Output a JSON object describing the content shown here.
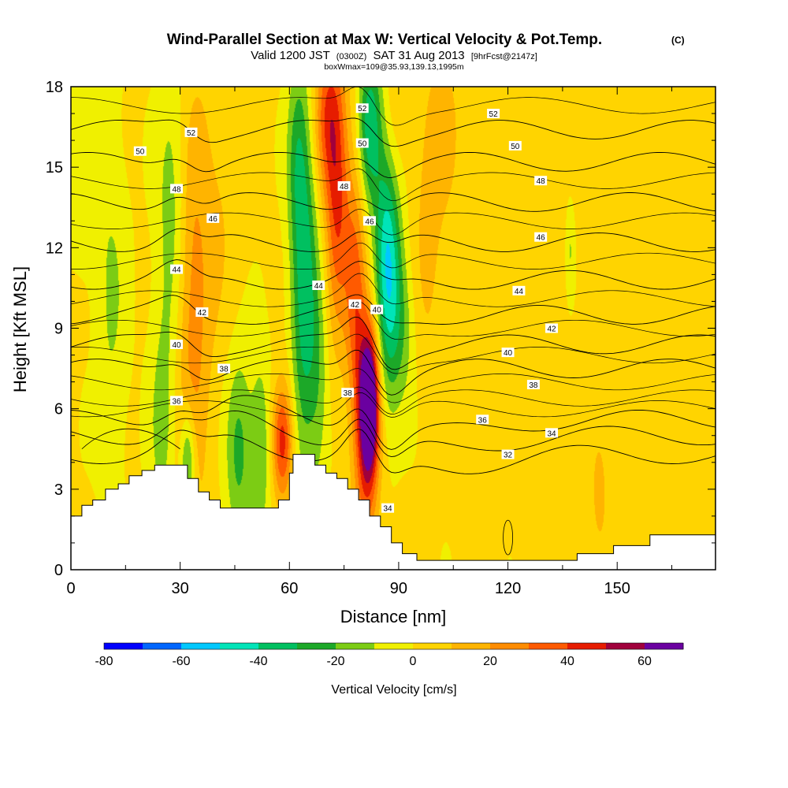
{
  "title": {
    "main": "Wind-Parallel Section at Max W: Vertical Velocity & Pot.Temp.",
    "copyright": "(C)",
    "valid_a": "Valid 1200 JST",
    "valid_b": "(0300Z)",
    "valid_c": "SAT 31 Aug 2013",
    "valid_d": "[9hrFcst@2147z]",
    "box": "boxWmax=109@35.93,139.13,1995m"
  },
  "chart_data": {
    "type": "heatmap",
    "xlabel": "Distance [nm]",
    "ylabel": "Height [Kft MSL]",
    "xlim": [
      0,
      177
    ],
    "ylim": [
      0,
      18
    ],
    "xticks": [
      "0",
      "30",
      "60",
      "90",
      "120",
      "150"
    ],
    "yticks": [
      "0",
      "3",
      "6",
      "9",
      "12",
      "15",
      "18"
    ],
    "colorbar": {
      "label": "Vertical Velocity [cm/s]",
      "tick_labels": [
        "-80",
        "-60",
        "-40",
        "-20",
        "0",
        "20",
        "40",
        "60"
      ],
      "levels": [
        -80,
        -70,
        -60,
        -50,
        -40,
        -30,
        -20,
        -10,
        0,
        10,
        20,
        30,
        40,
        50,
        60,
        70
      ],
      "colors": [
        "#0000ff",
        "#0066ff",
        "#00c8ff",
        "#00e4b8",
        "#00c060",
        "#1ca828",
        "#7ccc14",
        "#f0f000",
        "#ffd400",
        "#ffb400",
        "#ff8c00",
        "#ff5a00",
        "#e61c00",
        "#a0003c",
        "#6a00a0"
      ]
    },
    "terrain_kft": [
      [
        0,
        2.0
      ],
      [
        3,
        2.0
      ],
      [
        3,
        2.4
      ],
      [
        6,
        2.4
      ],
      [
        6,
        2.6
      ],
      [
        9.5,
        2.6
      ],
      [
        9.5,
        3.0
      ],
      [
        13,
        3.0
      ],
      [
        13,
        3.2
      ],
      [
        16,
        3.2
      ],
      [
        16,
        3.5
      ],
      [
        19.5,
        3.5
      ],
      [
        19.5,
        3.7
      ],
      [
        23,
        3.7
      ],
      [
        23,
        3.9
      ],
      [
        32,
        3.9
      ],
      [
        32,
        3.4
      ],
      [
        35,
        3.4
      ],
      [
        35,
        2.9
      ],
      [
        38,
        2.9
      ],
      [
        38,
        2.6
      ],
      [
        41,
        2.6
      ],
      [
        41,
        2.3
      ],
      [
        57,
        2.3
      ],
      [
        57,
        2.6
      ],
      [
        60,
        2.6
      ],
      [
        60,
        3.6
      ],
      [
        61,
        3.6
      ],
      [
        61,
        4.3
      ],
      [
        67,
        4.3
      ],
      [
        67,
        3.9
      ],
      [
        70,
        3.9
      ],
      [
        70,
        3.6
      ],
      [
        73,
        3.6
      ],
      [
        73,
        3.4
      ],
      [
        76,
        3.4
      ],
      [
        76,
        3.0
      ],
      [
        79,
        3.0
      ],
      [
        79,
        2.6
      ],
      [
        82,
        2.6
      ],
      [
        82,
        2.0
      ],
      [
        85,
        2.0
      ],
      [
        85,
        1.6
      ],
      [
        88,
        1.6
      ],
      [
        88,
        1.0
      ],
      [
        91,
        1.0
      ],
      [
        91,
        0.6
      ],
      [
        95,
        0.6
      ],
      [
        95,
        0.35
      ],
      [
        139,
        0.35
      ],
      [
        139,
        0.6
      ],
      [
        149,
        0.6
      ],
      [
        149,
        0.9
      ],
      [
        159,
        0.9
      ],
      [
        159,
        1.3
      ],
      [
        177,
        1.3
      ]
    ],
    "w_features": [
      {
        "x": 33,
        "z": 9.5,
        "sx": 3.5,
        "sz": 5.5,
        "w": 25
      },
      {
        "x": 28,
        "z": 13,
        "sx": 3,
        "sz": 4,
        "w": -20
      },
      {
        "x": 25,
        "z": 5.5,
        "sx": 2.5,
        "sz": 3,
        "w": -15
      },
      {
        "x": 32,
        "z": 4,
        "sx": 1.5,
        "sz": 1.5,
        "w": -35
      },
      {
        "x": 11,
        "z": 10,
        "sx": 3,
        "sz": 5,
        "w": -12
      },
      {
        "x": 46,
        "z": 4.5,
        "sx": 2.5,
        "sz": 2.5,
        "w": -25
      },
      {
        "x": 52,
        "z": 4.5,
        "sx": 2,
        "sz": 2.5,
        "w": -20
      },
      {
        "x": 41,
        "z": 14,
        "sx": 4,
        "sz": 4,
        "w": 8
      },
      {
        "x": 58,
        "z": 4.8,
        "sx": 2,
        "sz": 1.5,
        "w": 45
      },
      {
        "x": 64,
        "z": 10.5,
        "sx": 2.5,
        "sz": 4.5,
        "w": -38
      },
      {
        "x": 68,
        "z": 7,
        "sx": 2,
        "sz": 3,
        "w": -15
      },
      {
        "x": 62,
        "z": 15.5,
        "sx": 2,
        "sz": 2.5,
        "w": -18
      },
      {
        "x": 73,
        "z": 14,
        "sx": 2.3,
        "sz": 3.5,
        "w": 40
      },
      {
        "x": 70,
        "z": 17,
        "sx": 2.5,
        "sz": 2,
        "w": 30
      },
      {
        "x": 78,
        "z": 10.5,
        "sx": 2,
        "sz": 3.5,
        "w": 30
      },
      {
        "x": 82,
        "z": 6.3,
        "sx": 1.8,
        "sz": 1.8,
        "w": 65
      },
      {
        "x": 81,
        "z": 5.0,
        "sx": 2.3,
        "sz": 3,
        "w": 40
      },
      {
        "x": 87,
        "z": 12,
        "sx": 2.5,
        "sz": 3.5,
        "w": -55
      },
      {
        "x": 82,
        "z": 16.5,
        "sx": 2.3,
        "sz": 2,
        "w": -40
      },
      {
        "x": 91,
        "z": 9,
        "sx": 2.5,
        "sz": 2,
        "w": -15
      },
      {
        "x": 88,
        "z": 16,
        "sx": 2.5,
        "sz": 2.5,
        "w": 20
      },
      {
        "x": 98,
        "z": 13,
        "sx": 3,
        "sz": 4,
        "w": 12
      },
      {
        "x": 103,
        "z": 16.5,
        "sx": 3,
        "sz": 2.5,
        "w": 10
      },
      {
        "x": 137,
        "z": 12,
        "sx": 1,
        "sz": 1.5,
        "w": -15
      },
      {
        "x": 145,
        "z": 3,
        "sx": 1.5,
        "sz": 1.5,
        "w": 12
      },
      {
        "x": 130,
        "z": 14,
        "sx": 8,
        "sz": 6,
        "w": 6
      },
      {
        "x": 160,
        "z": 9,
        "sx": 10,
        "sz": 6,
        "w": 5
      },
      {
        "x": 125,
        "z": 3,
        "sx": 2,
        "sz": 1.5,
        "w": 6
      },
      {
        "x": 4,
        "z": 15,
        "sx": 3,
        "sz": 3,
        "w": -8
      },
      {
        "x": 108,
        "z": 4,
        "sx": 2,
        "sz": 2,
        "w": 6
      }
    ],
    "theta_contours": [
      {
        "level": "52",
        "z": 16.4
      },
      {
        "level": "50",
        "z": 15.2
      },
      {
        "level": "48",
        "z": 13.7
      },
      {
        "level": "46",
        "z": 12.2
      },
      {
        "level": "44",
        "z": 10.8
      },
      {
        "level": "42",
        "z": 9.5
      },
      {
        "level": "40",
        "z": 8.4
      },
      {
        "level": "38",
        "z": 7.5
      },
      {
        "level": "36",
        "z": 5.6
      },
      {
        "level": "34",
        "z": 5.0
      },
      {
        "level": "32",
        "z": 4.3
      }
    ],
    "contour_labels": [
      {
        "text": "52",
        "x": 33,
        "z": 16.3
      },
      {
        "text": "50",
        "x": 19,
        "z": 15.6
      },
      {
        "text": "48",
        "x": 29,
        "z": 14.2
      },
      {
        "text": "46",
        "x": 39,
        "z": 13.1
      },
      {
        "text": "44",
        "x": 29,
        "z": 11.2
      },
      {
        "text": "42",
        "x": 36,
        "z": 9.6
      },
      {
        "text": "40",
        "x": 29,
        "z": 8.4
      },
      {
        "text": "38",
        "x": 42,
        "z": 7.5
      },
      {
        "text": "36",
        "x": 29,
        "z": 6.3
      },
      {
        "text": "52",
        "x": 80,
        "z": 17.2
      },
      {
        "text": "50",
        "x": 80,
        "z": 15.9
      },
      {
        "text": "48",
        "x": 75,
        "z": 14.3
      },
      {
        "text": "46",
        "x": 82,
        "z": 13.0
      },
      {
        "text": "44",
        "x": 68,
        "z": 10.6
      },
      {
        "text": "42",
        "x": 78,
        "z": 9.9
      },
      {
        "text": "40",
        "x": 84,
        "z": 9.7
      },
      {
        "text": "38",
        "x": 76,
        "z": 6.6
      },
      {
        "text": "34",
        "x": 87,
        "z": 2.3
      },
      {
        "text": "52",
        "x": 116,
        "z": 17.0
      },
      {
        "text": "50",
        "x": 122,
        "z": 15.8
      },
      {
        "text": "48",
        "x": 129,
        "z": 14.5
      },
      {
        "text": "46",
        "x": 129,
        "z": 12.4
      },
      {
        "text": "44",
        "x": 123,
        "z": 10.4
      },
      {
        "text": "42",
        "x": 132,
        "z": 9.0
      },
      {
        "text": "40",
        "x": 120,
        "z": 8.1
      },
      {
        "text": "38",
        "x": 127,
        "z": 6.9
      },
      {
        "text": "36",
        "x": 113,
        "z": 5.6
      },
      {
        "text": "34",
        "x": 132,
        "z": 5.1
      },
      {
        "text": "32",
        "x": 120,
        "z": 4.3
      }
    ]
  }
}
